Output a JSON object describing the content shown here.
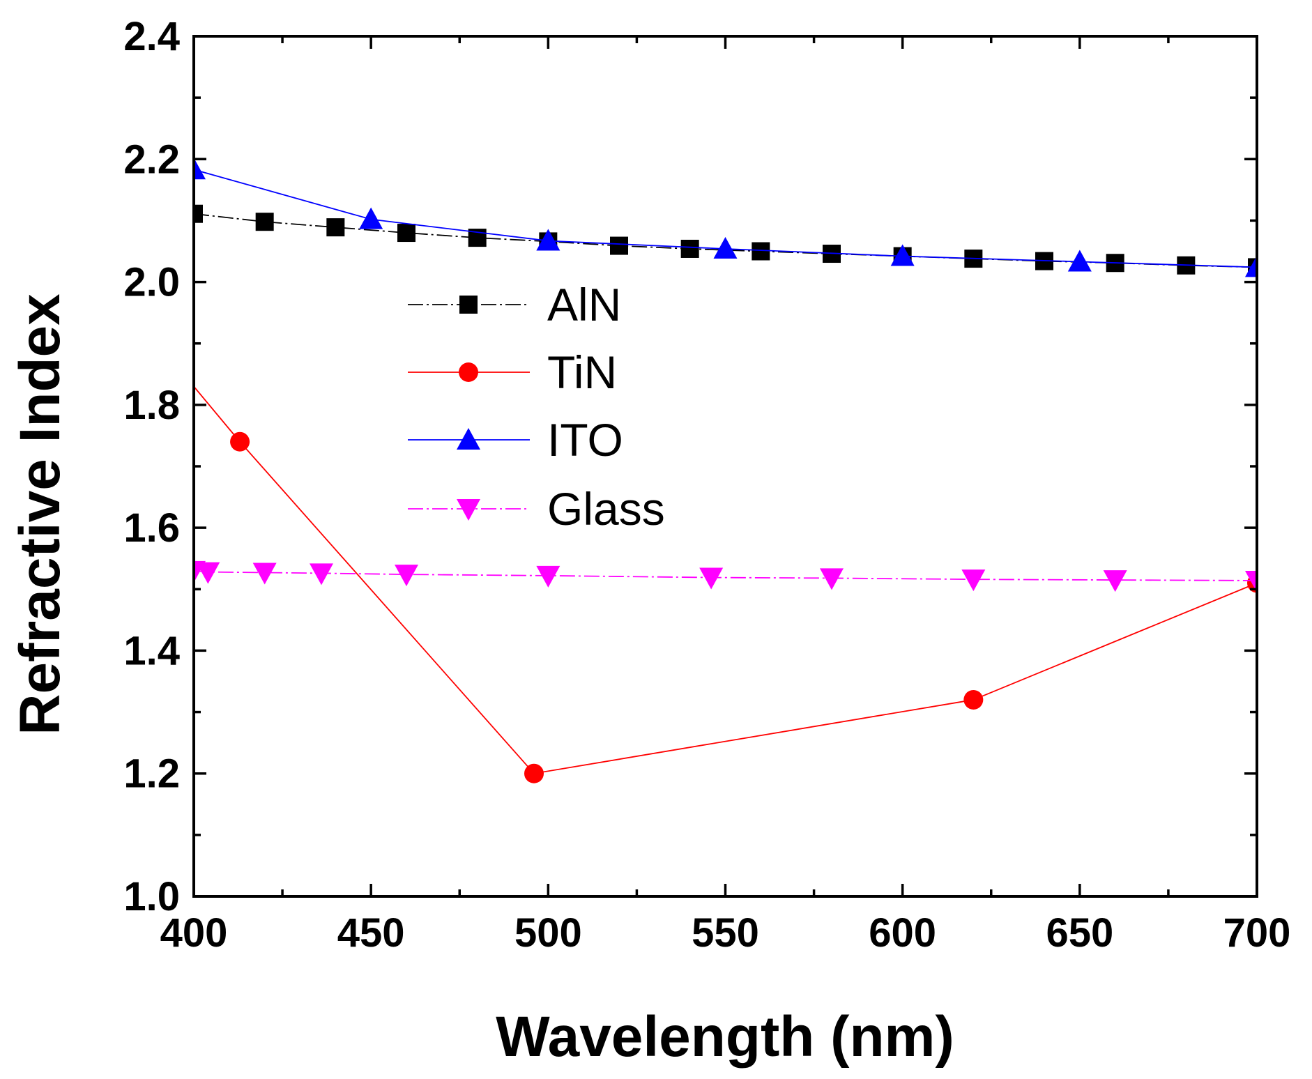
{
  "chart_data": {
    "type": "line",
    "title": "",
    "xlabel": "Wavelength (nm)",
    "ylabel": "Refractive Index",
    "xlim": [
      400,
      700
    ],
    "ylim": [
      1.0,
      2.4
    ],
    "x_ticks": [
      400,
      450,
      500,
      550,
      600,
      650,
      700
    ],
    "x_tick_labels": [
      "400",
      "450",
      "500",
      "550",
      "600",
      "650",
      "700"
    ],
    "x_minor_step": 25,
    "y_ticks": [
      1.0,
      1.2,
      1.4,
      1.6,
      1.8,
      2.0,
      2.2,
      2.4
    ],
    "y_tick_labels": [
      "1.0",
      "1.2",
      "1.4",
      "1.6",
      "1.8",
      "2.0",
      "2.2",
      "2.4"
    ],
    "y_minor_step": 0.1,
    "grid": false,
    "legend_position": "center-left",
    "series": [
      {
        "name": "AlN",
        "color": "#000000",
        "marker": "square",
        "dashed": true,
        "x": [
          400,
          420,
          440,
          460,
          480,
          500,
          520,
          540,
          560,
          580,
          600,
          620,
          640,
          660,
          680,
          700
        ],
        "y": [
          2.111,
          2.098,
          2.089,
          2.08,
          2.072,
          2.066,
          2.059,
          2.054,
          2.05,
          2.046,
          2.042,
          2.038,
          2.034,
          2.031,
          2.027,
          2.024
        ]
      },
      {
        "name": "TiN",
        "color": "#ff0000",
        "marker": "circle",
        "dashed": false,
        "line_start": {
          "x": 400,
          "y": 1.83
        },
        "x": [
          413,
          496,
          620,
          700
        ],
        "y": [
          1.74,
          1.2,
          1.32,
          1.51
        ]
      },
      {
        "name": "ITO",
        "color": "#0000ff",
        "marker": "triangle-up",
        "dashed": false,
        "x": [
          400,
          450,
          500,
          550,
          600,
          650,
          700
        ],
        "y": [
          2.183,
          2.102,
          2.067,
          2.054,
          2.042,
          2.033,
          2.024
        ]
      },
      {
        "name": "Glass",
        "color": "#ff00ff",
        "marker": "triangle-down",
        "dashed": true,
        "x": [
          400,
          404,
          420,
          436,
          460,
          500,
          546,
          580,
          620,
          660,
          700
        ],
        "y": [
          1.53,
          1.528,
          1.527,
          1.526,
          1.524,
          1.522,
          1.519,
          1.518,
          1.516,
          1.515,
          1.514
        ]
      }
    ]
  }
}
